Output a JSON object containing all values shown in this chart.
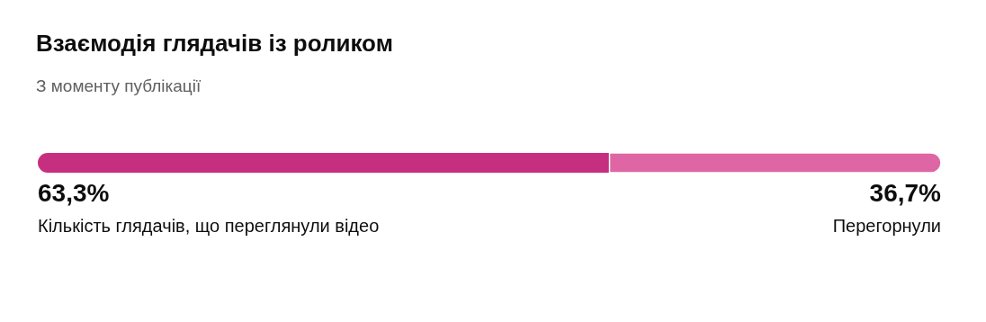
{
  "chart_data": {
    "type": "bar",
    "orientation": "horizontal",
    "stacked": true,
    "title": "Взаємодія глядачів із роликом",
    "subtitle": "З моменту публікації",
    "categories": [
      null
    ],
    "series": [
      {
        "name": "Кількість глядачів, що переглянули відео",
        "color": "#c62f7f",
        "values": [
          63.3
        ],
        "value_labels": [
          "63,3%"
        ]
      },
      {
        "name": "Перегорнули",
        "color": "#df66a4",
        "values": [
          36.7
        ],
        "value_labels": [
          "36,7%"
        ]
      }
    ]
  }
}
